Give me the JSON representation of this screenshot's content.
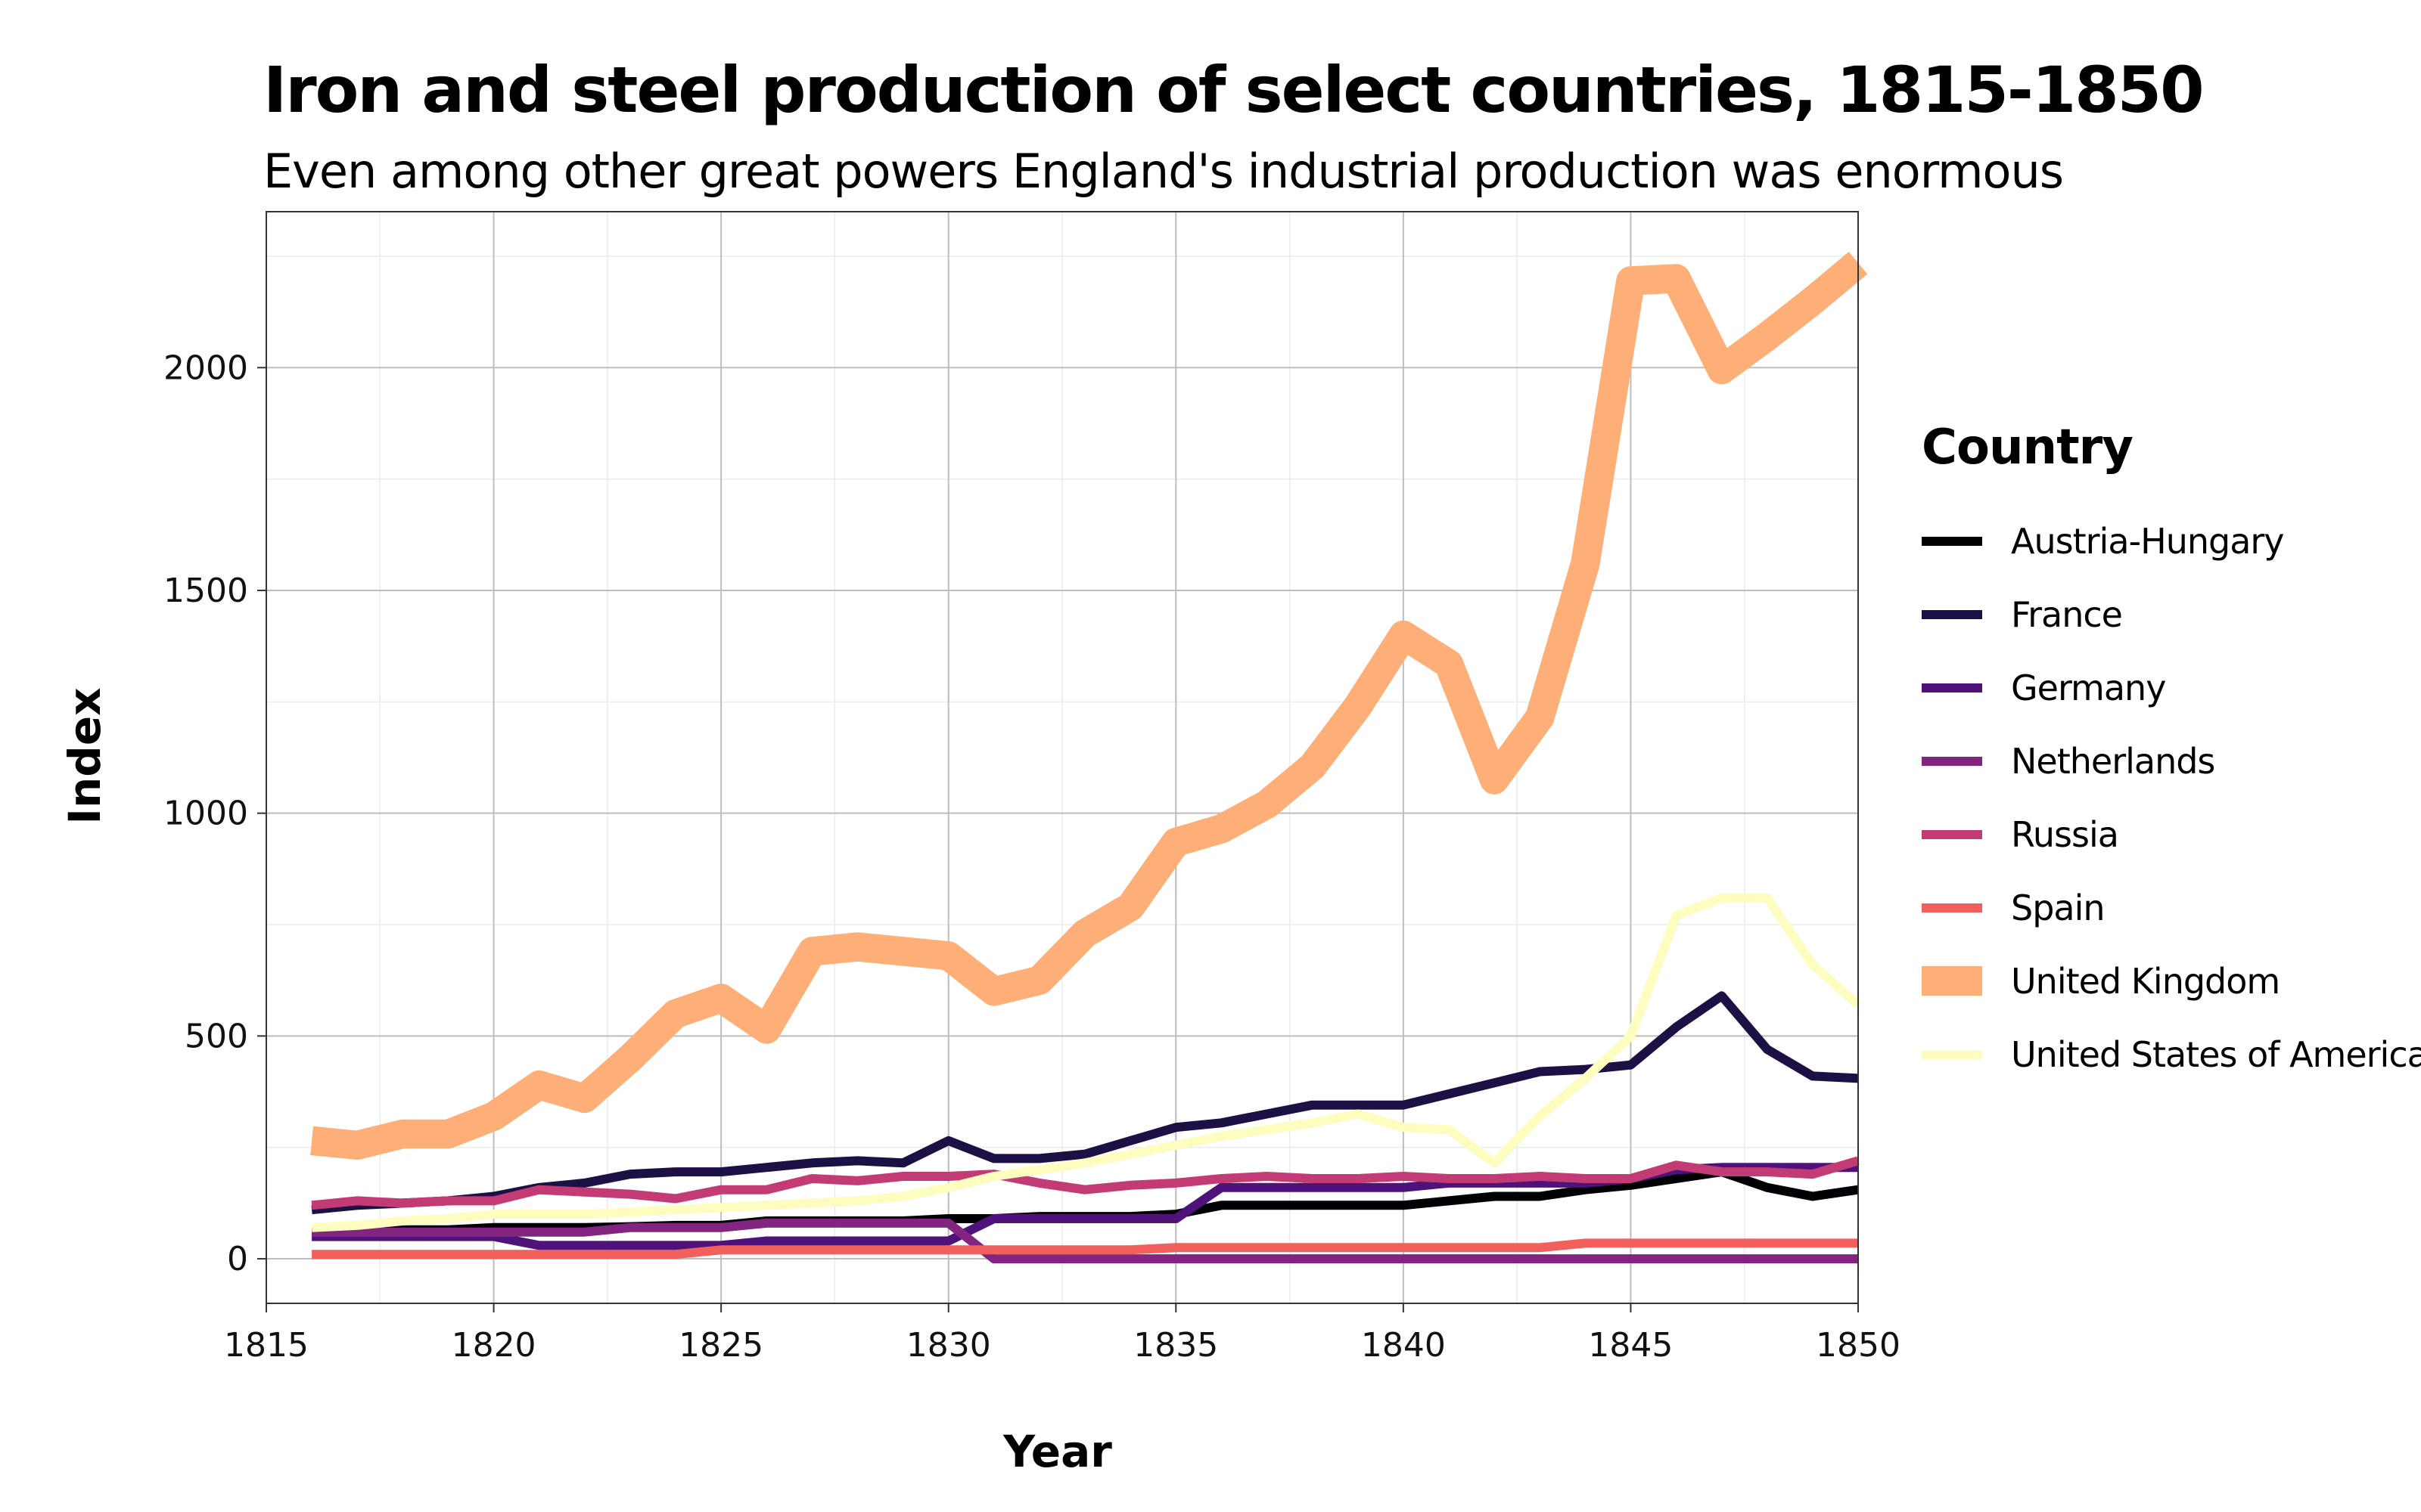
{
  "chart_data": {
    "type": "line",
    "title": "Iron and steel production of select countries, 1815-1850",
    "subtitle": "Even among other great powers England's industrial production was enormous",
    "xlabel": "Year",
    "ylabel": "Index",
    "xlim": [
      1815,
      1850
    ],
    "ylim": [
      -100,
      2350
    ],
    "xticks": [
      "1815",
      "1820",
      "1825",
      "1830",
      "1835",
      "1840",
      "1845",
      "1850"
    ],
    "yticks": [
      "0",
      "500",
      "1000",
      "1500",
      "2000"
    ],
    "grid": true,
    "legend_title": "Country",
    "legend_position": "right",
    "x": [
      1816,
      1817,
      1818,
      1819,
      1820,
      1821,
      1822,
      1823,
      1824,
      1825,
      1826,
      1827,
      1828,
      1829,
      1830,
      1831,
      1832,
      1833,
      1834,
      1835,
      1836,
      1837,
      1838,
      1839,
      1840,
      1841,
      1842,
      1843,
      1844,
      1845,
      1846,
      1847,
      1848,
      1849,
      1850
    ],
    "series": [
      {
        "name": "Austria-Hungary",
        "color": "#000004",
        "width": 5,
        "values": [
          60,
          60,
          65,
          65,
          70,
          70,
          70,
          72,
          75,
          75,
          85,
          85,
          85,
          85,
          90,
          90,
          95,
          95,
          95,
          100,
          120,
          120,
          120,
          120,
          120,
          130,
          140,
          140,
          155,
          165,
          180,
          195,
          160,
          140,
          155
        ]
      },
      {
        "name": "France",
        "color": "#1c1044",
        "width": 5,
        "values": [
          110,
          120,
          125,
          130,
          140,
          160,
          170,
          190,
          195,
          195,
          205,
          215,
          220,
          215,
          265,
          225,
          225,
          235,
          265,
          295,
          305,
          325,
          345,
          345,
          345,
          370,
          395,
          420,
          425,
          435,
          520,
          590,
          470,
          410,
          405
        ]
      },
      {
        "name": "Germany",
        "color": "#4f127b",
        "width": 5,
        "values": [
          50,
          50,
          50,
          50,
          50,
          30,
          30,
          30,
          30,
          30,
          40,
          40,
          40,
          40,
          40,
          90,
          90,
          90,
          90,
          90,
          160,
          160,
          160,
          160,
          160,
          170,
          170,
          170,
          170,
          180,
          200,
          205,
          205,
          205,
          205
        ]
      },
      {
        "name": "Netherlands",
        "color": "#812581",
        "width": 5,
        "values": [
          60,
          60,
          60,
          60,
          60,
          60,
          60,
          70,
          70,
          70,
          80,
          80,
          80,
          80,
          80,
          0,
          0,
          0,
          0,
          0,
          0,
          0,
          0,
          0,
          0,
          0,
          0,
          0,
          0,
          0,
          0,
          0,
          0,
          0,
          0
        ]
      },
      {
        "name": "Russia",
        "color": "#c23b75",
        "width": 5,
        "values": [
          120,
          130,
          125,
          130,
          130,
          155,
          150,
          145,
          135,
          155,
          155,
          180,
          175,
          185,
          185,
          190,
          170,
          155,
          165,
          170,
          180,
          185,
          180,
          180,
          185,
          180,
          180,
          185,
          180,
          180,
          210,
          195,
          195,
          190,
          220
        ]
      },
      {
        "name": "Spain",
        "color": "#f1605d",
        "width": 5,
        "values": [
          10,
          10,
          10,
          10,
          10,
          10,
          10,
          10,
          10,
          20,
          20,
          20,
          20,
          20,
          20,
          20,
          20,
          20,
          20,
          25,
          25,
          25,
          25,
          25,
          25,
          25,
          25,
          25,
          35,
          35,
          35,
          35,
          35,
          35,
          35
        ]
      },
      {
        "name": "United Kingdom",
        "color": "#feaf77",
        "width": 16,
        "values": [
          265,
          255,
          280,
          280,
          320,
          390,
          360,
          450,
          550,
          585,
          515,
          690,
          700,
          690,
          680,
          600,
          625,
          730,
          790,
          935,
          965,
          1020,
          1105,
          1240,
          1400,
          1335,
          1075,
          1215,
          1560,
          2195,
          2200,
          1995,
          2070,
          2150,
          2235
        ]
      },
      {
        "name": "United States of America",
        "color": "#fcfdbf",
        "width": 5,
        "values": [
          70,
          75,
          85,
          90,
          100,
          100,
          100,
          105,
          110,
          115,
          120,
          125,
          130,
          140,
          160,
          185,
          200,
          215,
          235,
          255,
          275,
          290,
          305,
          325,
          295,
          290,
          215,
          320,
          405,
          500,
          770,
          810,
          810,
          660,
          570
        ]
      }
    ]
  }
}
